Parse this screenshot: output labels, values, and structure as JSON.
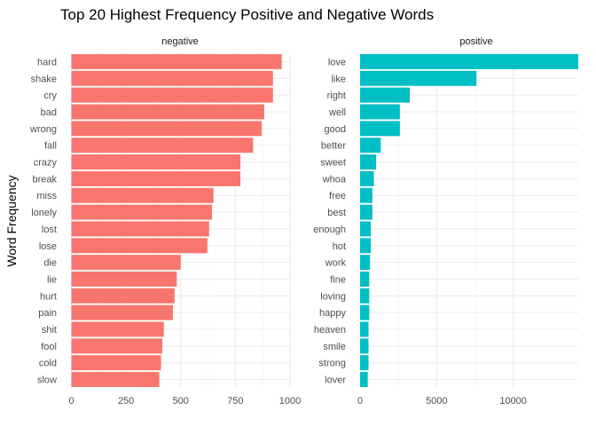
{
  "chart_data": {
    "type": "bar",
    "orientation": "horizontal",
    "title": "Top 20 Highest Frequency Positive and Negative Words",
    "ylabel": "Word Frequency",
    "xlabel": "",
    "colors": {
      "negative": "#F8766D",
      "positive": "#00BFC4"
    },
    "panels": [
      {
        "name": "negative",
        "color": "#F8766D",
        "xlim": [
          0,
          1000
        ],
        "xticks": [
          0,
          250,
          500,
          750,
          1000
        ],
        "xtick_labels": [
          "0",
          "250",
          "500",
          "750",
          "1000"
        ],
        "categories": [
          "hard",
          "shake",
          "cry",
          "bad",
          "wrong",
          "fall",
          "crazy",
          "break",
          "miss",
          "lonely",
          "lost",
          "lose",
          "die",
          "lie",
          "hurt",
          "pain",
          "shit",
          "fool",
          "cold",
          "slow"
        ],
        "values": [
          962,
          922,
          922,
          882,
          871,
          831,
          773,
          773,
          650,
          643,
          630,
          622,
          500,
          482,
          472,
          464,
          423,
          416,
          410,
          402
        ]
      },
      {
        "name": "positive",
        "color": "#00BFC4",
        "xlim": [
          0,
          14250
        ],
        "xticks": [
          0,
          5000,
          10000
        ],
        "xtick_labels": [
          "0",
          "5000",
          "10000"
        ],
        "categories": [
          "love",
          "like",
          "right",
          "well",
          "good",
          "better",
          "sweet",
          "whoa",
          "free",
          "best",
          "enough",
          "hot",
          "work",
          "fine",
          "loving",
          "happy",
          "heaven",
          "smile",
          "strong",
          "lover"
        ],
        "values": [
          14250,
          7600,
          3250,
          2600,
          2600,
          1350,
          1050,
          900,
          800,
          800,
          700,
          700,
          650,
          600,
          600,
          600,
          550,
          550,
          550,
          500
        ]
      }
    ]
  }
}
